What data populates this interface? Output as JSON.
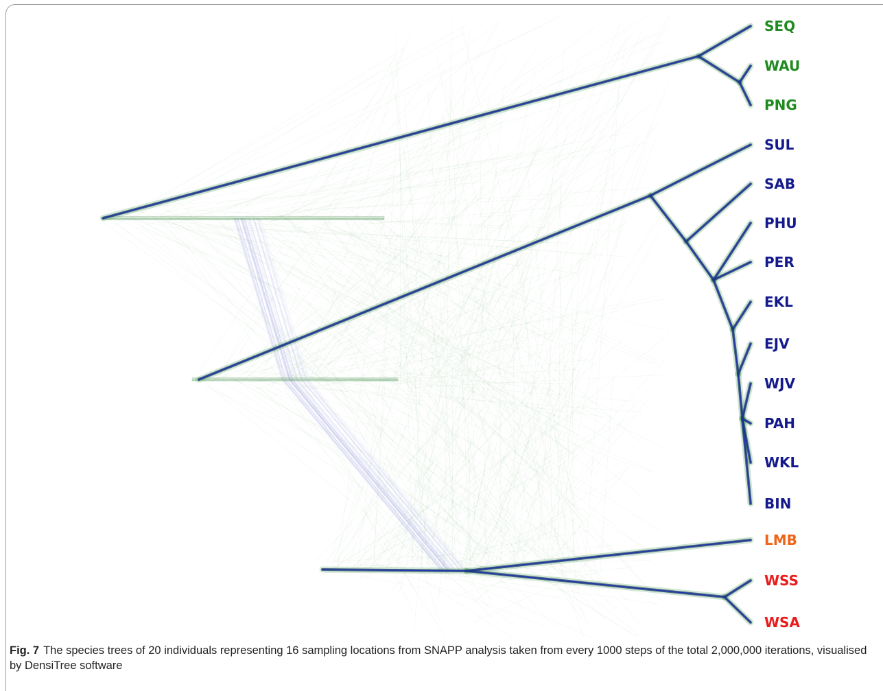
{
  "figure": {
    "label": "Fig. 7",
    "caption": "The species trees of 20 individuals representing 16 sampling locations from SNAPP analysis taken from every 1000 steps of the total 2,000,000 iterations, visualised by DensiTree software"
  },
  "taxa": [
    {
      "label": "SEQ",
      "color": "#1f8a1f"
    },
    {
      "label": "WAU",
      "color": "#1f8a1f"
    },
    {
      "label": "PNG",
      "color": "#1f8a1f"
    },
    {
      "label": "SUL",
      "color": "#141a8c"
    },
    {
      "label": "SAB",
      "color": "#141a8c"
    },
    {
      "label": "PHU",
      "color": "#141a8c"
    },
    {
      "label": "PER",
      "color": "#141a8c"
    },
    {
      "label": "EKL",
      "color": "#141a8c"
    },
    {
      "label": "EJV",
      "color": "#141a8c"
    },
    {
      "label": "WJV",
      "color": "#141a8c"
    },
    {
      "label": "PAH",
      "color": "#141a8c"
    },
    {
      "label": "WKL",
      "color": "#141a8c"
    },
    {
      "label": "BIN",
      "color": "#141a8c"
    },
    {
      "label": "LMB",
      "color": "#f06418"
    },
    {
      "label": "WSS",
      "color": "#e81c1c"
    },
    {
      "label": "WSA",
      "color": "#e81c1c"
    }
  ],
  "colors": {
    "tree_consensus": "#1f2fa8",
    "tree_cloud": "#2e8b3a",
    "tree_alt": "#8f8fe0"
  }
}
